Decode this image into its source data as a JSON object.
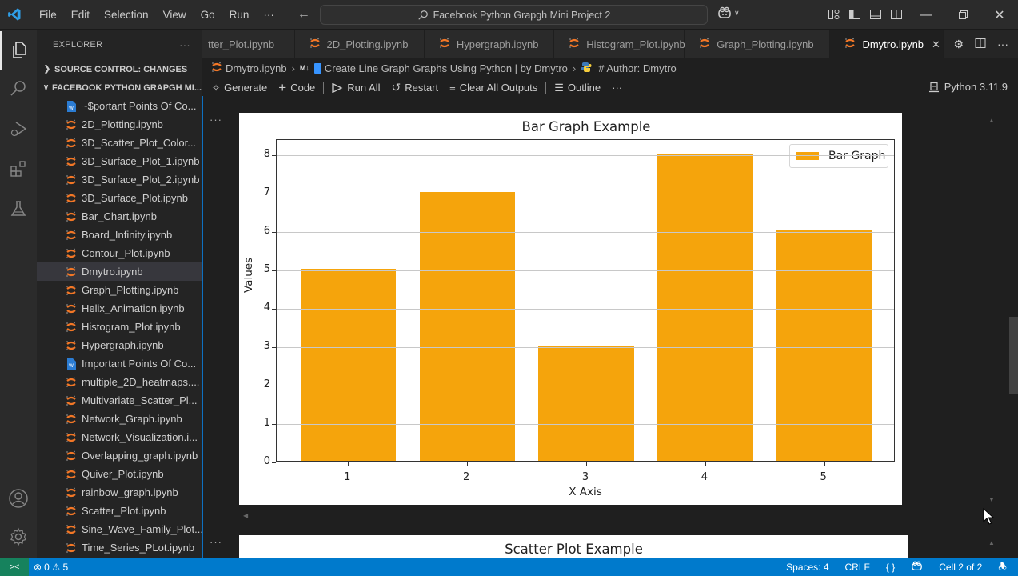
{
  "titlebar": {
    "menu": [
      "File",
      "Edit",
      "Selection",
      "View",
      "Go",
      "Run",
      "···"
    ],
    "search": "Facebook Python Grapgh Mini Project 2",
    "back_icon": "arrow-left-icon",
    "forward_icon": "arrow-right-icon"
  },
  "sidebar": {
    "title": "EXPLORER",
    "more": "···",
    "sections": [
      {
        "label": "SOURCE CONTROL: CHANGES",
        "expanded": false
      },
      {
        "label": "FACEBOOK PYTHON GRAPGH MI...",
        "expanded": true
      }
    ],
    "files": [
      {
        "name": "~$portant Points Of Co...",
        "type": "word"
      },
      {
        "name": "2D_Plotting.ipynb",
        "type": "jupyter"
      },
      {
        "name": "3D_Scatter_Plot_Color...",
        "type": "jupyter"
      },
      {
        "name": "3D_Surface_Plot_1.ipynb",
        "type": "jupyter"
      },
      {
        "name": "3D_Surface_Plot_2.ipynb",
        "type": "jupyter"
      },
      {
        "name": "3D_Surface_Plot.ipynb",
        "type": "jupyter"
      },
      {
        "name": "Bar_Chart.ipynb",
        "type": "jupyter"
      },
      {
        "name": "Board_Infinity.ipynb",
        "type": "jupyter"
      },
      {
        "name": "Contour_Plot.ipynb",
        "type": "jupyter"
      },
      {
        "name": "Dmytro.ipynb",
        "type": "jupyter",
        "selected": true
      },
      {
        "name": "Graph_Plotting.ipynb",
        "type": "jupyter"
      },
      {
        "name": "Helix_Animation.ipynb",
        "type": "jupyter"
      },
      {
        "name": "Histogram_Plot.ipynb",
        "type": "jupyter"
      },
      {
        "name": "Hypergraph.ipynb",
        "type": "jupyter"
      },
      {
        "name": "Important Points Of Co...",
        "type": "word"
      },
      {
        "name": "multiple_2D_heatmaps....",
        "type": "jupyter"
      },
      {
        "name": "Multivariate_Scatter_Pl...",
        "type": "jupyter"
      },
      {
        "name": "Network_Graph.ipynb",
        "type": "jupyter"
      },
      {
        "name": "Network_Visualization.i...",
        "type": "jupyter"
      },
      {
        "name": "Overlapping_graph.ipynb",
        "type": "jupyter"
      },
      {
        "name": "Quiver_Plot.ipynb",
        "type": "jupyter"
      },
      {
        "name": "rainbow_graph.ipynb",
        "type": "jupyter"
      },
      {
        "name": "Scatter_Plot.ipynb",
        "type": "jupyter"
      },
      {
        "name": "Sine_Wave_Family_Plot....",
        "type": "jupyter"
      },
      {
        "name": "Time_Series_PLot.ipynb",
        "type": "jupyter"
      }
    ]
  },
  "tabs": [
    {
      "label": "tter_Plot.ipynb",
      "active": false
    },
    {
      "label": "2D_Plotting.ipynb",
      "active": false
    },
    {
      "label": "Hypergraph.ipynb",
      "active": false
    },
    {
      "label": "Histogram_Plot.ipynb",
      "active": false
    },
    {
      "label": "Graph_Plotting.ipynb",
      "active": false
    },
    {
      "label": "Dmytro.ipynb",
      "active": true
    }
  ],
  "breadcrumb": {
    "file": "Dmytro.ipynb",
    "md_badge": "M↓",
    "section": "Create Line Graph Graphs Using Python | by Dmytro",
    "cell": "# Author: Dmytro"
  },
  "toolbar": {
    "generate": "Generate",
    "code": "Code",
    "run_all": "Run All",
    "restart": "Restart",
    "clear_outputs": "Clear All Outputs",
    "outline": "Outline",
    "more": "···",
    "kernel": "Python 3.11.9"
  },
  "cell_more": "···",
  "chart_data": {
    "type": "bar",
    "title": "Bar Graph Example",
    "xlabel": "X Axis",
    "ylabel": "Values",
    "categories": [
      "1",
      "2",
      "3",
      "4",
      "5"
    ],
    "values": [
      5,
      7,
      3,
      8,
      6
    ],
    "legend": [
      "Bar Graph"
    ],
    "legend_position": "upper right",
    "ylim": [
      0,
      8.4
    ],
    "yticks": [
      "0",
      "1",
      "2",
      "3",
      "4",
      "5",
      "6",
      "7",
      "8"
    ],
    "grid": "y",
    "color": "#f5a40c"
  },
  "next_output": {
    "title": "Scatter Plot Example"
  },
  "statusbar": {
    "errors": "0",
    "warnings": "5",
    "spaces": "Spaces: 4",
    "eol": "CRLF",
    "braces": "{ }",
    "cell": "Cell 2 of 2"
  },
  "colors": {
    "accent": "#007acc",
    "remote": "#16825d",
    "bar": "#f5a40c",
    "jupyter": "#f37726"
  }
}
